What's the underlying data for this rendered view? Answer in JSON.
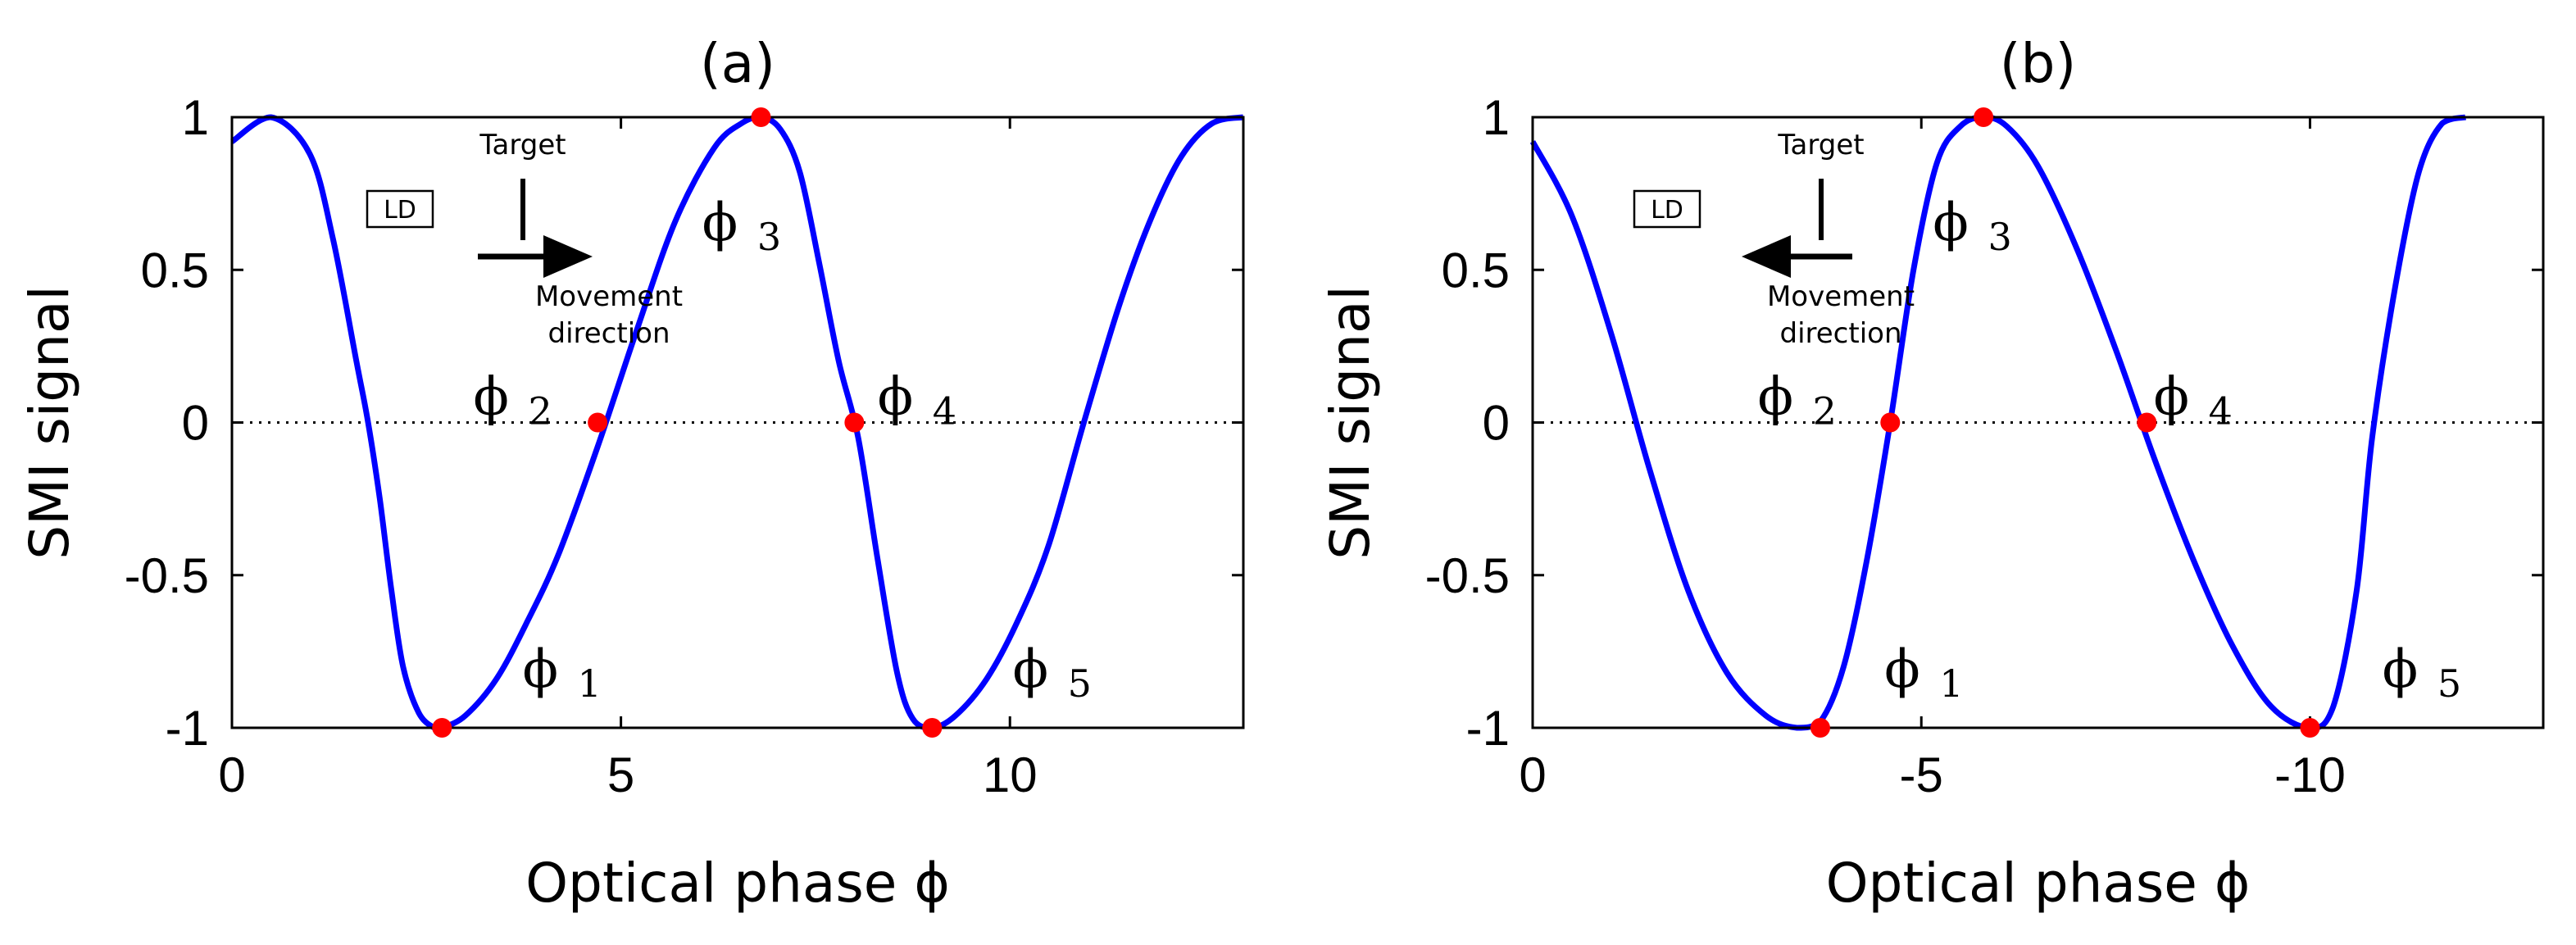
{
  "chart_data": [
    {
      "type": "line",
      "title": "(a)",
      "xlabel": "Optical phase ϕ",
      "ylabel": "SMI signal",
      "xlim": [
        0,
        13
      ],
      "ylim": [
        -1,
        1
      ],
      "xticks": [
        0,
        5,
        10
      ],
      "xtick_labels": [
        "0",
        "5",
        "10"
      ],
      "yticks": [
        1,
        0.5,
        0,
        -0.5,
        -1
      ],
      "ytick_labels": [
        "1",
        "0.5",
        "0",
        "-0.5",
        "-1"
      ],
      "grid": false,
      "zero_line": true,
      "series": [
        {
          "color": "#0000ff",
          "x": [
            0,
            0.5,
            1.0,
            1.3,
            1.6,
            1.75,
            1.9,
            2.05,
            2.2,
            2.4,
            2.6,
            2.7,
            3.0,
            3.4,
            3.8,
            4.2,
            4.7,
            5.2,
            5.7,
            6.2,
            6.55,
            6.8,
            7.05,
            7.3,
            7.55,
            7.8,
            8.05,
            8.3,
            8.55,
            8.75,
            9.0,
            9.3,
            9.7,
            10.1,
            10.5,
            10.95,
            11.4,
            11.8,
            12.2,
            12.6,
            13.0
          ],
          "y": [
            0.92,
            1.0,
            0.88,
            0.6,
            0.2,
            0.0,
            -0.25,
            -0.55,
            -0.8,
            -0.95,
            -1.0,
            -1.0,
            -0.96,
            -0.84,
            -0.65,
            -0.43,
            -0.08,
            0.3,
            0.66,
            0.9,
            0.98,
            1.0,
            0.96,
            0.82,
            0.52,
            0.2,
            -0.05,
            -0.45,
            -0.82,
            -0.97,
            -1.0,
            -0.96,
            -0.84,
            -0.65,
            -0.4,
            0.0,
            0.38,
            0.66,
            0.87,
            0.98,
            1.0
          ]
        }
      ],
      "markers": [
        {
          "x": 2.7,
          "y": -1,
          "label": "ϕ",
          "sub": "1"
        },
        {
          "x": 4.7,
          "y": 0,
          "label": "ϕ",
          "sub": "2"
        },
        {
          "x": 6.8,
          "y": 1,
          "label": "ϕ",
          "sub": "3"
        },
        {
          "x": 8.0,
          "y": 0,
          "label": "ϕ",
          "sub": "4"
        },
        {
          "x": 9.0,
          "y": -1,
          "label": "ϕ",
          "sub": "5"
        }
      ],
      "annotations": {
        "ld": "LD",
        "target": "Target",
        "movement1": "Movement",
        "movement2": "direction",
        "arrow_direction": "right"
      }
    },
    {
      "type": "line",
      "title": "(b)",
      "xlabel": "Optical phase ϕ",
      "ylabel": "SMI signal",
      "xlim": [
        0,
        -13
      ],
      "ylim": [
        -1,
        1
      ],
      "xticks": [
        0,
        -5,
        -10
      ],
      "xtick_labels": [
        "0",
        "-5",
        "-10"
      ],
      "yticks": [
        1,
        0.5,
        0,
        -0.5,
        -1
      ],
      "ytick_labels": [
        "1",
        "0.5",
        "0",
        "-0.5",
        "-1"
      ],
      "grid": false,
      "zero_line": true,
      "series": [
        {
          "color": "#0000ff",
          "x": [
            0,
            -0.5,
            -1.0,
            -1.5,
            -2.0,
            -2.5,
            -3.0,
            -3.4,
            -3.7,
            -4.0,
            -4.3,
            -4.6,
            -4.9,
            -5.2,
            -5.5,
            -5.8,
            -6.1,
            -6.5,
            -7.0,
            -7.5,
            -8.0,
            -8.5,
            -9.0,
            -9.5,
            -10.0,
            -10.3,
            -10.6,
            -10.8,
            -11.1,
            -11.4,
            -11.7,
            -12.0
          ],
          "y": [
            0.92,
            0.68,
            0.3,
            -0.15,
            -0.55,
            -0.82,
            -0.96,
            -1.0,
            -0.98,
            -0.8,
            -0.45,
            -0.0,
            0.5,
            0.85,
            0.97,
            1.0,
            0.97,
            0.84,
            0.57,
            0.24,
            -0.12,
            -0.45,
            -0.73,
            -0.93,
            -1.0,
            -0.93,
            -0.55,
            -0.05,
            0.45,
            0.82,
            0.98,
            1.0
          ]
        }
      ],
      "markers": [
        {
          "x": -3.7,
          "y": -1,
          "label": "ϕ",
          "sub": "1"
        },
        {
          "x": -4.6,
          "y": 0,
          "label": "ϕ",
          "sub": "2"
        },
        {
          "x": -5.8,
          "y": 1,
          "label": "ϕ",
          "sub": "3"
        },
        {
          "x": -7.9,
          "y": 0,
          "label": "ϕ",
          "sub": "4"
        },
        {
          "x": -10.0,
          "y": -1,
          "label": "ϕ",
          "sub": "5"
        }
      ],
      "annotations": {
        "ld": "LD",
        "target": "Target",
        "movement1": "Movement",
        "movement2": "direction",
        "arrow_direction": "left"
      }
    }
  ]
}
